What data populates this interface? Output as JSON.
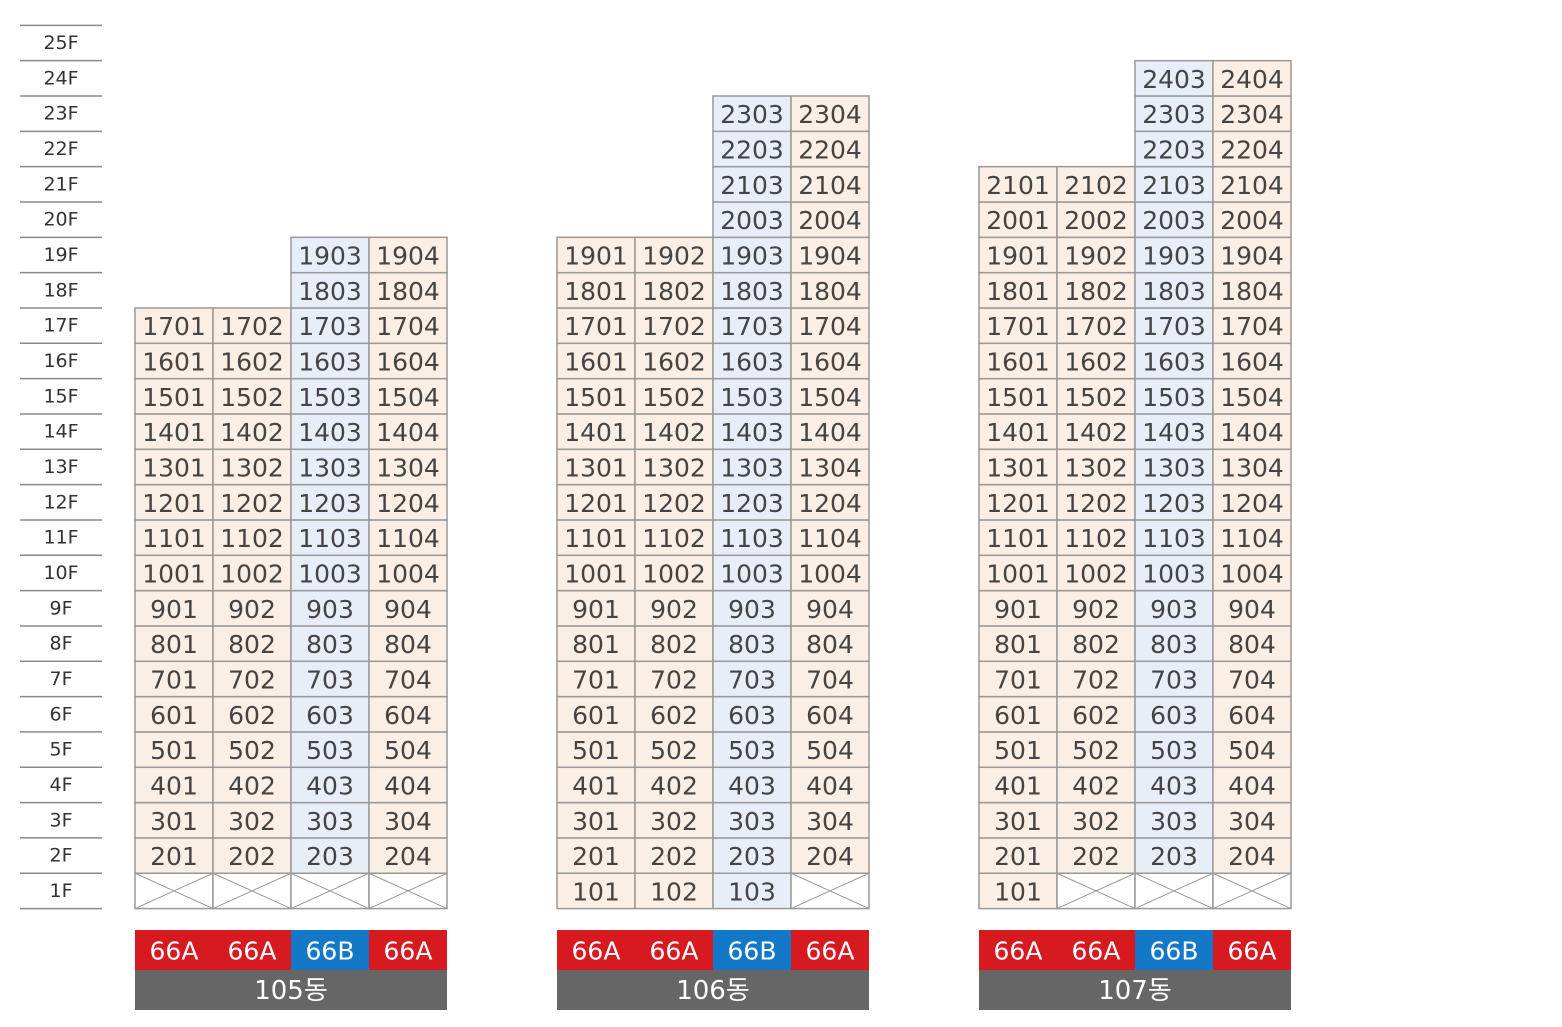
{
  "floors": [
    "25F",
    "24F",
    "23F",
    "22F",
    "21F",
    "20F",
    "19F",
    "18F",
    "17F",
    "16F",
    "15F",
    "14F",
    "13F",
    "12F",
    "11F",
    "10F",
    "9F",
    "8F",
    "7F",
    "6F",
    "5F",
    "4F",
    "3F",
    "2F",
    "1F"
  ],
  "buildings": [
    {
      "name": "105동",
      "columns": [
        {
          "type": "66A",
          "color": "#d71920",
          "fill": "#fbeee4",
          "units": [
            null,
            "201",
            "301",
            "401",
            "501",
            "601",
            "701",
            "801",
            "901",
            "1001",
            "1101",
            "1201",
            "1301",
            "1401",
            "1501",
            "1601",
            "1701"
          ]
        },
        {
          "type": "66A",
          "color": "#d71920",
          "fill": "#fbeee4",
          "units": [
            null,
            "202",
            "302",
            "402",
            "502",
            "602",
            "702",
            "802",
            "902",
            "1002",
            "1102",
            "1202",
            "1302",
            "1402",
            "1502",
            "1602",
            "1702"
          ]
        },
        {
          "type": "66B",
          "color": "#1478c8",
          "fill": "#e8eef8",
          "units": [
            null,
            "203",
            "303",
            "403",
            "503",
            "603",
            "703",
            "803",
            "903",
            "1003",
            "1103",
            "1203",
            "1303",
            "1403",
            "1503",
            "1603",
            "1703",
            "1803",
            "1903"
          ]
        },
        {
          "type": "66A",
          "color": "#d71920",
          "fill": "#fbeee4",
          "units": [
            null,
            "204",
            "304",
            "404",
            "504",
            "604",
            "704",
            "804",
            "904",
            "1004",
            "1104",
            "1204",
            "1304",
            "1404",
            "1504",
            "1604",
            "1704",
            "1804",
            "1904"
          ]
        }
      ]
    },
    {
      "name": "106동",
      "columns": [
        {
          "type": "66A",
          "color": "#d71920",
          "fill": "#fbeee4",
          "units": [
            "101",
            "201",
            "301",
            "401",
            "501",
            "601",
            "701",
            "801",
            "901",
            "1001",
            "1101",
            "1201",
            "1301",
            "1401",
            "1501",
            "1601",
            "1701",
            "1801",
            "1901"
          ]
        },
        {
          "type": "66A",
          "color": "#d71920",
          "fill": "#fbeee4",
          "units": [
            "102",
            "202",
            "302",
            "402",
            "502",
            "602",
            "702",
            "802",
            "902",
            "1002",
            "1102",
            "1202",
            "1302",
            "1402",
            "1502",
            "1602",
            "1702",
            "1802",
            "1902"
          ]
        },
        {
          "type": "66B",
          "color": "#1478c8",
          "fill": "#e8eef8",
          "units": [
            "103",
            "203",
            "303",
            "403",
            "503",
            "603",
            "703",
            "803",
            "903",
            "1003",
            "1103",
            "1203",
            "1303",
            "1403",
            "1503",
            "1603",
            "1703",
            "1803",
            "1903",
            "2003",
            "2103",
            "2203",
            "2303"
          ]
        },
        {
          "type": "66A",
          "color": "#d71920",
          "fill": "#fbeee4",
          "units": [
            null,
            "204",
            "304",
            "404",
            "504",
            "604",
            "704",
            "804",
            "904",
            "1004",
            "1104",
            "1204",
            "1304",
            "1404",
            "1504",
            "1604",
            "1704",
            "1804",
            "1904",
            "2004",
            "2104",
            "2204",
            "2304"
          ]
        }
      ]
    },
    {
      "name": "107동",
      "columns": [
        {
          "type": "66A",
          "color": "#d71920",
          "fill": "#fbeee4",
          "units": [
            "101",
            "201",
            "301",
            "401",
            "501",
            "601",
            "701",
            "801",
            "901",
            "1001",
            "1101",
            "1201",
            "1301",
            "1401",
            "1501",
            "1601",
            "1701",
            "1801",
            "1901",
            "2001",
            "2101"
          ]
        },
        {
          "type": "66A",
          "color": "#d71920",
          "fill": "#fbeee4",
          "units": [
            null,
            "202",
            "302",
            "402",
            "502",
            "602",
            "702",
            "802",
            "902",
            "1002",
            "1102",
            "1202",
            "1302",
            "1402",
            "1502",
            "1602",
            "1702",
            "1802",
            "1902",
            "2002",
            "2102"
          ]
        },
        {
          "type": "66B",
          "color": "#1478c8",
          "fill": "#e8eef8",
          "units": [
            null,
            "203",
            "303",
            "403",
            "503",
            "603",
            "703",
            "803",
            "903",
            "1003",
            "1103",
            "1203",
            "1303",
            "1403",
            "1503",
            "1603",
            "1703",
            "1803",
            "1903",
            "2003",
            "2103",
            "2203",
            "2303",
            "2403"
          ]
        },
        {
          "type": "66A",
          "color": "#d71920",
          "fill": "#fbeee4",
          "units": [
            null,
            "204",
            "304",
            "404",
            "504",
            "604",
            "704",
            "804",
            "904",
            "1004",
            "1104",
            "1204",
            "1304",
            "1404",
            "1504",
            "1604",
            "1704",
            "1804",
            "1904",
            "2004",
            "2104",
            "2204",
            "2304",
            "2404"
          ]
        }
      ]
    }
  ]
}
